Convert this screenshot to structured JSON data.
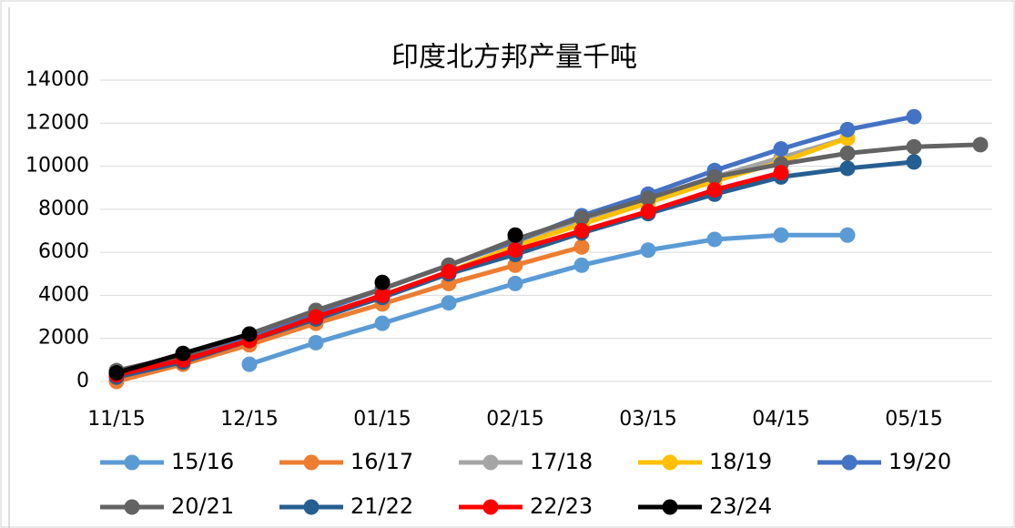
{
  "chart_data": {
    "type": "line",
    "title": "印度北方邦产量千吨",
    "categories": [
      "11/15",
      null,
      "12/15",
      null,
      "01/15",
      null,
      "02/15",
      null,
      "03/15",
      null,
      "04/15",
      null,
      "05/15",
      null
    ],
    "ylim": [
      0,
      14000
    ],
    "yticks": [
      0,
      2000,
      4000,
      6000,
      8000,
      10000,
      12000,
      14000
    ],
    "grid": true,
    "legend": "bottom",
    "series": [
      {
        "name": "15/16",
        "color": "#5b9bd5",
        "values": [
          null,
          null,
          800,
          1800,
          2700,
          3650,
          4550,
          5400,
          6100,
          6600,
          6800,
          6800,
          null,
          null
        ]
      },
      {
        "name": "16/17",
        "color": "#ed7d31",
        "values": [
          0,
          800,
          1700,
          2700,
          3600,
          4550,
          5400,
          6250,
          null,
          null,
          null,
          null,
          null,
          null
        ]
      },
      {
        "name": "17/18",
        "color": "#a5a5a5",
        "values": [
          500,
          1200,
          2200,
          3300,
          4300,
          5400,
          6500,
          7500,
          8500,
          9500,
          10400,
          11300,
          null,
          null
        ]
      },
      {
        "name": "18/19",
        "color": "#ffc000",
        "values": [
          400,
          1100,
          2000,
          3000,
          4000,
          5100,
          6300,
          7300,
          8300,
          9300,
          10200,
          11300,
          null,
          null
        ]
      },
      {
        "name": "19/20",
        "color": "#4472c4",
        "values": [
          400,
          1200,
          2100,
          3200,
          4300,
          5400,
          6500,
          7700,
          8700,
          9800,
          10800,
          11700,
          12300,
          null
        ]
      },
      {
        "name": "20/21",
        "color": "#636363",
        "values": [
          500,
          1200,
          2200,
          3300,
          4300,
          5400,
          6600,
          7600,
          8500,
          9500,
          10100,
          10600,
          10900,
          11000
        ]
      },
      {
        "name": "21/22",
        "color": "#255e91",
        "values": [
          200,
          900,
          1900,
          2900,
          3900,
          5000,
          5900,
          6900,
          7800,
          8700,
          9500,
          9900,
          10200,
          null
        ]
      },
      {
        "name": "22/23",
        "color": "#ff0000",
        "values": [
          300,
          1000,
          1900,
          3000,
          4000,
          5100,
          6100,
          7000,
          7900,
          8900,
          9700,
          null,
          null,
          null
        ]
      },
      {
        "name": "23/24",
        "color": "#000000",
        "values": [
          400,
          1300,
          2200,
          null,
          4600,
          null,
          6800,
          null,
          null,
          null,
          null,
          null,
          null,
          null
        ]
      }
    ]
  }
}
